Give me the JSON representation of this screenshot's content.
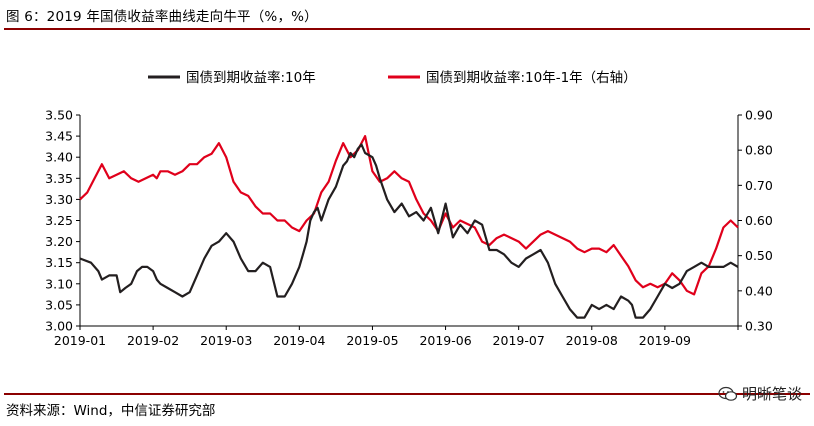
{
  "figure": {
    "title": "图 6：2019 年国债收益率曲线走向牛平（%，%）",
    "source": "资料来源：Wind，中信证券研究部",
    "watermark": "明晰笔谈",
    "watermark_icon": "wechat-logo-icon"
  },
  "colors": {
    "series_left": "#231f20",
    "series_right": "#e0001b",
    "rule": "#8b0000"
  },
  "chart_data": {
    "type": "line",
    "title": "",
    "xlabel": "",
    "ylabel": "",
    "x_tick_labels": [
      "2019-01",
      "2019-02",
      "2019-03",
      "2019-04",
      "2019-05",
      "2019-06",
      "2019-07",
      "2019-08",
      "2019-09"
    ],
    "x_range": [
      0,
      9
    ],
    "ylim_left": [
      3.0,
      3.5
    ],
    "ylim_right": [
      0.3,
      0.9
    ],
    "y_left_ticks": [
      "3.50",
      "3.45",
      "3.40",
      "3.35",
      "3.30",
      "3.25",
      "3.20",
      "3.15",
      "3.10",
      "3.05",
      "3.00"
    ],
    "y_right_ticks": [
      "0.90",
      "0.80",
      "0.70",
      "0.60",
      "0.50",
      "0.40",
      "0.30"
    ],
    "legend_position": "top",
    "grid": false,
    "series": [
      {
        "name": "国债到期收益率:10年",
        "axis": "left",
        "x": [
          0.0,
          0.15,
          0.25,
          0.3,
          0.4,
          0.5,
          0.55,
          0.62,
          0.7,
          0.78,
          0.85,
          0.92,
          1.0,
          1.05,
          1.1,
          1.2,
          1.3,
          1.4,
          1.5,
          1.6,
          1.7,
          1.8,
          1.9,
          2.0,
          2.1,
          2.2,
          2.3,
          2.4,
          2.5,
          2.6,
          2.7,
          2.8,
          2.9,
          3.0,
          3.05,
          3.1,
          3.15,
          3.2,
          3.25,
          3.3,
          3.4,
          3.5,
          3.6,
          3.65,
          3.7,
          3.75,
          3.8,
          3.85,
          3.9,
          4.0,
          4.05,
          4.1,
          4.2,
          4.3,
          4.4,
          4.5,
          4.6,
          4.7,
          4.8,
          4.9,
          5.0,
          5.1,
          5.2,
          5.3,
          5.4,
          5.5,
          5.6,
          5.7,
          5.8,
          5.9,
          6.0,
          6.1,
          6.2,
          6.3,
          6.4,
          6.5,
          6.6,
          6.7,
          6.8,
          6.9,
          7.0,
          7.1,
          7.2,
          7.3,
          7.4,
          7.5,
          7.55,
          7.6,
          7.7,
          7.8,
          7.9,
          8.0,
          8.1,
          8.2,
          8.3,
          8.4,
          8.5,
          8.6,
          8.7,
          8.8,
          8.9,
          9.0
        ],
        "values": [
          3.16,
          3.15,
          3.13,
          3.11,
          3.12,
          3.12,
          3.08,
          3.09,
          3.1,
          3.13,
          3.14,
          3.14,
          3.13,
          3.11,
          3.1,
          3.09,
          3.08,
          3.07,
          3.08,
          3.12,
          3.16,
          3.19,
          3.2,
          3.22,
          3.2,
          3.16,
          3.13,
          3.13,
          3.15,
          3.14,
          3.07,
          3.07,
          3.1,
          3.14,
          3.17,
          3.2,
          3.25,
          3.27,
          3.28,
          3.25,
          3.3,
          3.33,
          3.38,
          3.39,
          3.41,
          3.4,
          3.42,
          3.43,
          3.41,
          3.4,
          3.38,
          3.35,
          3.3,
          3.27,
          3.29,
          3.26,
          3.27,
          3.25,
          3.28,
          3.22,
          3.29,
          3.21,
          3.24,
          3.22,
          3.25,
          3.24,
          3.18,
          3.18,
          3.17,
          3.15,
          3.14,
          3.16,
          3.17,
          3.18,
          3.15,
          3.1,
          3.07,
          3.04,
          3.02,
          3.02,
          3.05,
          3.04,
          3.05,
          3.04,
          3.07,
          3.06,
          3.05,
          3.02,
          3.02,
          3.04,
          3.07,
          3.1,
          3.09,
          3.1,
          3.13,
          3.14,
          3.15,
          3.14,
          3.14,
          3.14,
          3.15,
          3.14
        ]
      },
      {
        "name": "国债到期收益率:10年-1年（右轴）",
        "axis": "right",
        "x": [
          0.0,
          0.1,
          0.2,
          0.3,
          0.4,
          0.5,
          0.6,
          0.7,
          0.8,
          0.9,
          1.0,
          1.05,
          1.1,
          1.2,
          1.3,
          1.4,
          1.5,
          1.6,
          1.7,
          1.8,
          1.9,
          2.0,
          2.1,
          2.2,
          2.3,
          2.4,
          2.5,
          2.6,
          2.7,
          2.8,
          2.9,
          3.0,
          3.1,
          3.2,
          3.3,
          3.4,
          3.5,
          3.6,
          3.7,
          3.8,
          3.9,
          4.0,
          4.1,
          4.2,
          4.3,
          4.4,
          4.5,
          4.6,
          4.7,
          4.8,
          4.9,
          5.0,
          5.1,
          5.2,
          5.3,
          5.4,
          5.5,
          5.6,
          5.7,
          5.8,
          5.9,
          6.0,
          6.1,
          6.2,
          6.3,
          6.4,
          6.5,
          6.6,
          6.7,
          6.8,
          6.9,
          7.0,
          7.1,
          7.2,
          7.3,
          7.4,
          7.5,
          7.6,
          7.7,
          7.8,
          7.9,
          8.0,
          8.1,
          8.2,
          8.3,
          8.4,
          8.5,
          8.6,
          8.7,
          8.8,
          8.9,
          9.0
        ],
        "values": [
          0.66,
          0.68,
          0.72,
          0.76,
          0.72,
          0.73,
          0.74,
          0.72,
          0.71,
          0.72,
          0.73,
          0.72,
          0.74,
          0.74,
          0.73,
          0.74,
          0.76,
          0.76,
          0.78,
          0.79,
          0.82,
          0.78,
          0.71,
          0.68,
          0.67,
          0.64,
          0.62,
          0.62,
          0.6,
          0.6,
          0.58,
          0.57,
          0.6,
          0.62,
          0.68,
          0.71,
          0.77,
          0.82,
          0.78,
          0.8,
          0.84,
          0.74,
          0.71,
          0.72,
          0.74,
          0.72,
          0.71,
          0.66,
          0.62,
          0.6,
          0.57,
          0.62,
          0.58,
          0.6,
          0.59,
          0.58,
          0.54,
          0.53,
          0.55,
          0.56,
          0.55,
          0.54,
          0.52,
          0.54,
          0.56,
          0.57,
          0.56,
          0.55,
          0.54,
          0.52,
          0.51,
          0.52,
          0.52,
          0.51,
          0.53,
          0.5,
          0.47,
          0.43,
          0.41,
          0.42,
          0.41,
          0.42,
          0.45,
          0.43,
          0.4,
          0.39,
          0.45,
          0.47,
          0.52,
          0.58,
          0.6,
          0.58
        ]
      }
    ]
  }
}
